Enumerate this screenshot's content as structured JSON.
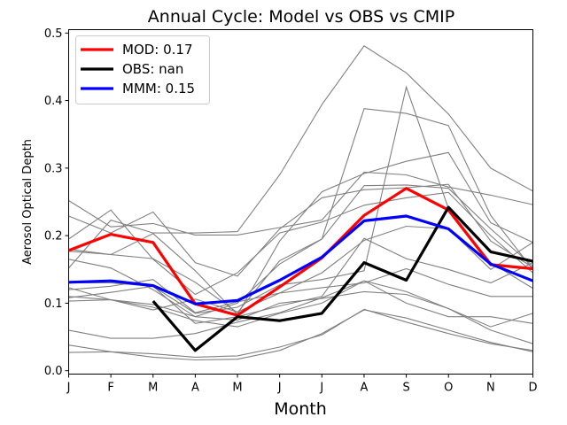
{
  "chart_data": {
    "type": "line",
    "title": "Annual Cycle: Model vs OBS vs CMIP",
    "xlabel": "Month",
    "ylabel": "Aerosol Optical Depth",
    "categories": [
      "J",
      "F",
      "M",
      "A",
      "M",
      "J",
      "J",
      "A",
      "S",
      "O",
      "N",
      "D"
    ],
    "ylim": [
      -0.005,
      0.505
    ],
    "yticks": [
      0.0,
      0.1,
      0.2,
      0.3,
      0.4,
      0.5
    ],
    "ytick_labels": [
      "0.0",
      "0.1",
      "0.2",
      "0.3",
      "0.4",
      "0.5"
    ],
    "grid": false,
    "legend_position": "top-left",
    "cmip_color": "#808080",
    "cmip_series": [
      [
        0.252,
        0.213,
        0.218,
        0.201,
        0.201,
        0.212,
        0.223,
        0.294,
        0.29,
        0.272,
        0.26,
        0.246
      ],
      [
        0.18,
        0.172,
        0.203,
        0.148,
        0.083,
        0.192,
        0.265,
        0.292,
        0.31,
        0.323,
        0.219,
        0.19
      ],
      [
        0.177,
        0.172,
        0.166,
        0.131,
        0.086,
        0.163,
        0.195,
        0.274,
        0.275,
        0.27,
        0.21,
        0.155
      ],
      [
        0.229,
        0.204,
        0.235,
        0.16,
        0.14,
        0.21,
        0.256,
        0.268,
        0.271,
        0.276,
        0.192,
        0.153
      ],
      [
        0.195,
        0.238,
        0.165,
        0.113,
        0.145,
        0.204,
        0.22,
        0.245,
        0.256,
        0.264,
        0.2,
        0.145
      ],
      [
        0.165,
        0.152,
        0.12,
        0.08,
        0.1,
        0.158,
        0.195,
        0.388,
        0.381,
        0.363,
        0.23,
        0.15
      ],
      [
        0.152,
        0.223,
        0.204,
        0.204,
        0.206,
        0.29,
        0.394,
        0.481,
        0.441,
        0.38,
        0.3,
        0.266
      ],
      [
        0.12,
        0.125,
        0.135,
        0.086,
        0.102,
        0.115,
        0.145,
        0.193,
        0.214,
        0.21,
        0.15,
        0.19
      ],
      [
        0.108,
        0.116,
        0.125,
        0.085,
        0.094,
        0.127,
        0.135,
        0.148,
        0.42,
        0.24,
        0.16,
        0.122
      ],
      [
        0.123,
        0.105,
        0.09,
        0.106,
        0.087,
        0.115,
        0.123,
        0.13,
        0.151,
        0.128,
        0.11,
        0.11
      ],
      [
        0.13,
        0.13,
        0.125,
        0.07,
        0.08,
        0.096,
        0.11,
        0.196,
        0.166,
        0.15,
        0.13,
        0.16
      ],
      [
        0.103,
        0.105,
        0.098,
        0.08,
        0.075,
        0.1,
        0.107,
        0.117,
        0.113,
        0.092,
        0.065,
        0.085
      ],
      [
        0.11,
        0.105,
        0.094,
        0.074,
        0.065,
        0.085,
        0.1,
        0.133,
        0.1,
        0.08,
        0.08,
        0.07
      ],
      [
        0.06,
        0.048,
        0.048,
        0.055,
        0.072,
        0.086,
        0.108,
        0.133,
        0.117,
        0.092,
        0.06,
        0.04
      ],
      [
        0.038,
        0.028,
        0.025,
        0.02,
        0.022,
        0.035,
        0.053,
        0.091,
        0.072,
        0.055,
        0.04,
        0.03
      ],
      [
        0.027,
        0.028,
        0.02,
        0.016,
        0.017,
        0.03,
        0.055,
        0.09,
        0.078,
        0.06,
        0.042,
        0.028
      ]
    ],
    "series": [
      {
        "name": "MOD",
        "label": "MOD: 0.17",
        "color": "#ff0000",
        "values": [
          0.178,
          0.202,
          0.19,
          0.099,
          0.082,
          0.124,
          0.167,
          0.23,
          0.27,
          0.238,
          0.157,
          0.151
        ]
      },
      {
        "name": "OBS",
        "label": "OBS: nan",
        "color": "#000000",
        "values": [
          null,
          null,
          0.103,
          0.03,
          0.08,
          0.074,
          0.085,
          0.16,
          0.134,
          0.242,
          0.176,
          0.162
        ]
      },
      {
        "name": "MMM",
        "label": "MMM: 0.15",
        "color": "#0000ff",
        "values": [
          0.131,
          0.133,
          0.126,
          0.099,
          0.104,
          0.134,
          0.168,
          0.222,
          0.229,
          0.21,
          0.158,
          0.133
        ]
      }
    ]
  }
}
